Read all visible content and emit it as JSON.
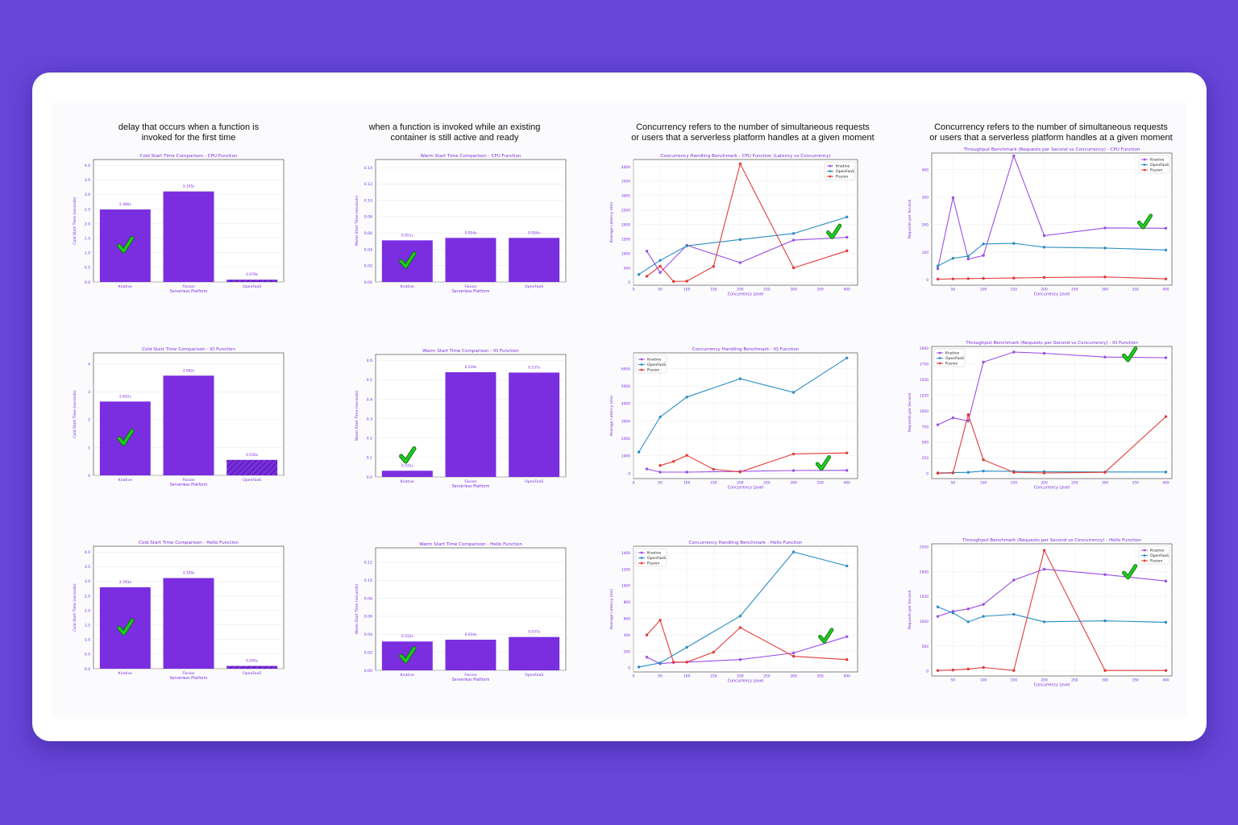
{
  "colors": {
    "background": "#6645d8",
    "bar": "#7a2ee0",
    "knative": "#9b4ee6",
    "openfaas": "#2a8ec4",
    "fission": "#e23a3a",
    "check": "#1fce1f",
    "label": "#7a2ee0"
  },
  "headers": {
    "cold": "delay that occurs when a function is\ninvoked for the first time",
    "warm": "when a function is invoked while an existing\ncontainer is still active and ready",
    "concurrency": "Concurrency refers to the number of simultaneous requests\nor users that a serverless platform handles at a given moment",
    "throughput": "Concurrency refers to the number of simultaneous requests\nor users that a serverless platform handles at a given moment"
  },
  "check_icon": "check-mark-icon",
  "chart_data": [
    {
      "id": "cold-cpu",
      "type": "bar",
      "title": "Cold Start Time Comparison - CPU Function",
      "xlabel": "Serverless Platform",
      "ylabel": "Cold Start Time (seconds)",
      "categories": [
        "Knative",
        "Fission",
        "OpenFaaS"
      ],
      "values": [
        2.486,
        3.105,
        0.079
      ],
      "value_labels": [
        "2.486s",
        "3.105s",
        "0.079s"
      ],
      "ylim": [
        0,
        4.2
      ],
      "yticks": [
        "0.0",
        "0.5",
        "1.0",
        "1.5",
        "2.0",
        "2.5",
        "3.0",
        "3.5",
        "4.0"
      ],
      "ytick_values": [
        0,
        0.5,
        1,
        1.5,
        2,
        2.5,
        3,
        3.5,
        4
      ],
      "hatched": [
        false,
        false,
        true
      ],
      "check_on": 0
    },
    {
      "id": "warm-cpu",
      "type": "bar",
      "title": "Warm Start Time Comparison - CPU Function",
      "xlabel": "Serverless Platform",
      "ylabel": "Warm Start Time (seconds)",
      "categories": [
        "Knative",
        "Fission",
        "OpenFaaS"
      ],
      "values": [
        0.051,
        0.054,
        0.054
      ],
      "value_labels": [
        "0.051s",
        "0.054s",
        "0.054s"
      ],
      "ylim": [
        0,
        0.15
      ],
      "yticks": [
        "0.00",
        "0.02",
        "0.04",
        "0.06",
        "0.08",
        "0.10",
        "0.12",
        "0.14"
      ],
      "ytick_values": [
        0,
        0.02,
        0.04,
        0.06,
        0.08,
        0.1,
        0.12,
        0.14
      ],
      "hatched": [
        false,
        false,
        false
      ],
      "check_on": 0
    },
    {
      "id": "conc-cpu",
      "type": "line",
      "title": "Concurrency Handling Benchmark - CPU Function (Latency vs Concurrency)",
      "xlabel": "Concurrency Level",
      "ylabel": "Average Latency (ms)",
      "xlim": [
        0,
        420
      ],
      "ylim": [
        -100,
        4250
      ],
      "xticks": [
        "0",
        "50",
        "100",
        "150",
        "200",
        "250",
        "300",
        "350",
        "400"
      ],
      "xtick_values": [
        0,
        50,
        100,
        150,
        200,
        250,
        300,
        350,
        400
      ],
      "yticks": [
        "0",
        "500",
        "1000",
        "1500",
        "2000",
        "2500",
        "3000",
        "3500",
        "4000"
      ],
      "ytick_values": [
        0,
        500,
        1000,
        1500,
        2000,
        2500,
        3000,
        3500,
        4000
      ],
      "legend": "top-right",
      "series": [
        {
          "name": "Knative",
          "color_key": "knative",
          "x": [
            25,
            50,
            100,
            200,
            300,
            400
          ],
          "y": [
            1080,
            340,
            1280,
            680,
            1460,
            1560
          ]
        },
        {
          "name": "OpenFaaS",
          "color_key": "openfaas",
          "x": [
            10,
            50,
            100,
            200,
            300,
            400
          ],
          "y": [
            270,
            760,
            1260,
            1480,
            1690,
            2260
          ]
        },
        {
          "name": "Fission",
          "color_key": "fission",
          "x": [
            25,
            50,
            75,
            100,
            150,
            200,
            300,
            400
          ],
          "y": [
            210,
            560,
            30,
            40,
            550,
            4100,
            500,
            1090
          ]
        }
      ],
      "check_at": [
        375,
        1560
      ]
    },
    {
      "id": "tp-cpu",
      "type": "line",
      "title": "Throughput Benchmark (Requests per Second vs Concurrency) - CPU Function",
      "xlabel": "Concurrency Level",
      "ylabel": "Requests per Second",
      "xlim": [
        15,
        410
      ],
      "ylim": [
        -20,
        460
      ],
      "xticks": [
        "50",
        "100",
        "150",
        "200",
        "250",
        "300",
        "350",
        "400"
      ],
      "xtick_values": [
        50,
        100,
        150,
        200,
        250,
        300,
        350,
        400
      ],
      "yticks": [
        "0",
        "100",
        "200",
        "300",
        "400"
      ],
      "ytick_values": [
        0,
        100,
        200,
        300,
        400
      ],
      "legend": "top-right",
      "series": [
        {
          "name": "Knative",
          "color_key": "knative",
          "x": [
            25,
            50,
            75,
            100,
            150,
            200,
            300,
            400
          ],
          "y": [
            40,
            298,
            75,
            88,
            450,
            160,
            188,
            187
          ]
        },
        {
          "name": "OpenFaaS",
          "color_key": "openfaas",
          "x": [
            25,
            50,
            75,
            100,
            150,
            200,
            300,
            400
          ],
          "y": [
            50,
            78,
            85,
            130,
            132,
            118,
            115,
            108
          ]
        },
        {
          "name": "Fission",
          "color_key": "fission",
          "x": [
            25,
            50,
            75,
            100,
            150,
            200,
            300,
            400
          ],
          "y": [
            2,
            3,
            4,
            5,
            6,
            8,
            10,
            3
          ]
        }
      ],
      "check_at": [
        365,
        190
      ]
    },
    {
      "id": "cold-io",
      "type": "bar",
      "title": "Cold Start Time Comparison - IO Function",
      "xlabel": "Serverless Platform",
      "ylabel": "Cold Start Time (seconds)",
      "categories": [
        "Knative",
        "Fission",
        "OpenFaaS"
      ],
      "values": [
        2.652,
        3.582,
        0.556
      ],
      "value_labels": [
        "2.652s",
        "3.582s",
        "0.556s"
      ],
      "ylim": [
        0,
        4.4
      ],
      "yticks": [
        "0",
        "1",
        "2",
        "3",
        "4"
      ],
      "ytick_values": [
        0,
        1,
        2,
        3,
        4
      ],
      "hatched": [
        false,
        false,
        true
      ],
      "check_on": 0
    },
    {
      "id": "warm-io",
      "type": "bar",
      "title": "Warm Start Time Comparison - IO Function",
      "xlabel": "Serverless Platform",
      "ylabel": "Warm Start Time (seconds)",
      "categories": [
        "Knative",
        "Fission",
        "OpenFaaS"
      ],
      "values": [
        0.032,
        0.539,
        0.537
      ],
      "value_labels": [
        "0.032s",
        "0.539s",
        "0.537s"
      ],
      "ylim": [
        0,
        0.63
      ],
      "yticks": [
        "0.0",
        "0.1",
        "0.2",
        "0.3",
        "0.4",
        "0.5",
        "0.6"
      ],
      "ytick_values": [
        0,
        0.1,
        0.2,
        0.3,
        0.4,
        0.5,
        0.6
      ],
      "hatched": [
        false,
        false,
        false
      ],
      "check_on": 0
    },
    {
      "id": "conc-io",
      "type": "line",
      "title": "Concurrency Handling Benchmark - IO Function",
      "xlabel": "Concurrency Level",
      "ylabel": "Average Latency (ms)",
      "xlim": [
        0,
        420
      ],
      "ylim": [
        -300,
        6900
      ],
      "xticks": [
        "0",
        "50",
        "100",
        "150",
        "200",
        "250",
        "300",
        "350",
        "400"
      ],
      "xtick_values": [
        0,
        50,
        100,
        150,
        200,
        250,
        300,
        350,
        400
      ],
      "yticks": [
        "0",
        "1000",
        "2000",
        "3000",
        "4000",
        "5000",
        "6000"
      ],
      "ytick_values": [
        0,
        1000,
        2000,
        3000,
        4000,
        5000,
        6000
      ],
      "legend": "top-left",
      "series": [
        {
          "name": "Knative",
          "color_key": "knative",
          "x": [
            25,
            50,
            100,
            200,
            300,
            400
          ],
          "y": [
            250,
            70,
            70,
            110,
            160,
            170
          ]
        },
        {
          "name": "OpenFaaS",
          "color_key": "openfaas",
          "x": [
            10,
            50,
            100,
            200,
            300,
            400
          ],
          "y": [
            1220,
            3230,
            4370,
            5420,
            4640,
            6610
          ]
        },
        {
          "name": "Fission",
          "color_key": "fission",
          "x": [
            50,
            75,
            100,
            150,
            200,
            300,
            400
          ],
          "y": [
            450,
            680,
            1030,
            230,
            80,
            1110,
            1170
          ]
        }
      ],
      "check_at": [
        355,
        260
      ]
    },
    {
      "id": "tp-io",
      "type": "line",
      "title": "Throughput Benchmark (Requests per Second vs Concurrency) - IO Function",
      "xlabel": "Concurrency Level",
      "ylabel": "Requests per Second",
      "xlim": [
        15,
        410
      ],
      "ylim": [
        -80,
        2030
      ],
      "xticks": [
        "50",
        "100",
        "150",
        "200",
        "250",
        "300",
        "350",
        "400"
      ],
      "xtick_values": [
        50,
        100,
        150,
        200,
        250,
        300,
        350,
        400
      ],
      "yticks": [
        "0",
        "250",
        "500",
        "750",
        "1000",
        "1250",
        "1500",
        "1750",
        "2000"
      ],
      "ytick_values": [
        0,
        250,
        500,
        750,
        1000,
        1250,
        1500,
        1750,
        2000
      ],
      "legend": "top-left",
      "series": [
        {
          "name": "Knative",
          "color_key": "knative",
          "x": [
            25,
            50,
            75,
            100,
            150,
            200,
            300,
            400
          ],
          "y": [
            780,
            890,
            840,
            1780,
            1940,
            1920,
            1860,
            1850
          ]
        },
        {
          "name": "OpenFaaS",
          "color_key": "openfaas",
          "x": [
            25,
            50,
            75,
            100,
            150,
            200,
            300,
            400
          ],
          "y": [
            10,
            15,
            20,
            40,
            35,
            30,
            25,
            25
          ]
        },
        {
          "name": "Fission",
          "color_key": "fission",
          "x": [
            25,
            50,
            75,
            100,
            150,
            200,
            300,
            400
          ],
          "y": [
            5,
            10,
            940,
            220,
            20,
            10,
            20,
            910
          ]
        }
      ],
      "check_at": [
        340,
        1810
      ]
    },
    {
      "id": "cold-hello",
      "type": "bar",
      "title": "Cold Start Time Comparison - Hello Function",
      "xlabel": "Serverless Platform",
      "ylabel": "Cold Start Time (seconds)",
      "categories": [
        "Knative",
        "Fission",
        "OpenFaaS"
      ],
      "values": [
        2.793,
        3.109,
        0.095
      ],
      "value_labels": [
        "2.793s",
        "3.109s",
        "0.095s"
      ],
      "ylim": [
        0,
        4.2
      ],
      "yticks": [
        "0.0",
        "0.5",
        "1.0",
        "1.5",
        "2.0",
        "2.5",
        "3.0",
        "3.5",
        "4.0"
      ],
      "ytick_values": [
        0,
        0.5,
        1,
        1.5,
        2,
        2.5,
        3,
        3.5,
        4
      ],
      "hatched": [
        false,
        false,
        true
      ],
      "check_on": 0
    },
    {
      "id": "warm-hello",
      "type": "bar",
      "title": "Warm Start Time Comparison - Hello Function",
      "xlabel": "Serverless Platform",
      "ylabel": "Warm Start Time (seconds)",
      "categories": [
        "Knative",
        "Fission",
        "OpenFaaS"
      ],
      "values": [
        0.032,
        0.034,
        0.037
      ],
      "value_labels": [
        "0.032s",
        "0.034s",
        "0.037s"
      ],
      "ylim": [
        0,
        0.136
      ],
      "yticks": [
        "0.00",
        "0.02",
        "0.04",
        "0.06",
        "0.08",
        "0.10",
        "0.12"
      ],
      "ytick_values": [
        0,
        0.02,
        0.04,
        0.06,
        0.08,
        0.1,
        0.12
      ],
      "hatched": [
        false,
        false,
        false
      ],
      "check_on": 0
    },
    {
      "id": "conc-hello",
      "type": "line",
      "title": "Concurrency Handling Benchmark - Hello Function",
      "xlabel": "Concurrency Level",
      "ylabel": "Average Latency (ms)",
      "xlim": [
        0,
        420
      ],
      "ylim": [
        -50,
        1480
      ],
      "xticks": [
        "0",
        "50",
        "100",
        "150",
        "200",
        "250",
        "300",
        "350",
        "400"
      ],
      "xtick_values": [
        0,
        50,
        100,
        150,
        200,
        250,
        300,
        350,
        400
      ],
      "yticks": [
        "0",
        "200",
        "400",
        "600",
        "800",
        "1000",
        "1200",
        "1400"
      ],
      "ytick_values": [
        0,
        200,
        400,
        600,
        800,
        1000,
        1200,
        1400
      ],
      "legend": "top-left",
      "series": [
        {
          "name": "Knative",
          "color_key": "knative",
          "x": [
            25,
            50,
            75,
            100,
            200,
            300,
            400
          ],
          "y": [
            130,
            50,
            65,
            70,
            100,
            180,
            380
          ]
        },
        {
          "name": "OpenFaaS",
          "color_key": "openfaas",
          "x": [
            10,
            50,
            100,
            200,
            300,
            400
          ],
          "y": [
            10,
            60,
            250,
            630,
            1410,
            1240
          ]
        },
        {
          "name": "Fission",
          "color_key": "fission",
          "x": [
            25,
            50,
            75,
            100,
            150,
            200,
            300,
            400
          ],
          "y": [
            400,
            580,
            70,
            70,
            190,
            490,
            140,
            100
          ]
        }
      ],
      "check_at": [
        360,
        320
      ]
    },
    {
      "id": "tp-hello",
      "type": "line",
      "title": "Throughput Benchmark (Requests per Second vs Concurrency) - Hello Function",
      "xlabel": "Concurrency Level",
      "ylabel": "Requests per Second",
      "xlim": [
        15,
        410
      ],
      "ylim": [
        -100,
        2560
      ],
      "xticks": [
        "50",
        "100",
        "150",
        "200",
        "250",
        "300",
        "350",
        "400"
      ],
      "xtick_values": [
        50,
        100,
        150,
        200,
        250,
        300,
        350,
        400
      ],
      "yticks": [
        "0",
        "500",
        "1000",
        "1500",
        "2000",
        "2500"
      ],
      "ytick_values": [
        0,
        500,
        1000,
        1500,
        2000,
        2500
      ],
      "legend": "top-right",
      "series": [
        {
          "name": "Knative",
          "color_key": "knative",
          "x": [
            25,
            50,
            75,
            100,
            150,
            200,
            300,
            400
          ],
          "y": [
            1100,
            1200,
            1250,
            1340,
            1830,
            2050,
            1940,
            1810
          ]
        },
        {
          "name": "OpenFaaS",
          "color_key": "openfaas",
          "x": [
            25,
            50,
            75,
            100,
            150,
            200,
            300,
            400
          ],
          "y": [
            1290,
            1170,
            990,
            1100,
            1140,
            990,
            1010,
            980
          ]
        },
        {
          "name": "Fission",
          "color_key": "fission",
          "x": [
            25,
            50,
            75,
            100,
            150,
            200,
            300,
            400
          ],
          "y": [
            10,
            20,
            40,
            70,
            10,
            2430,
            10,
            10
          ]
        }
      ],
      "check_at": [
        340,
        1880
      ]
    }
  ]
}
